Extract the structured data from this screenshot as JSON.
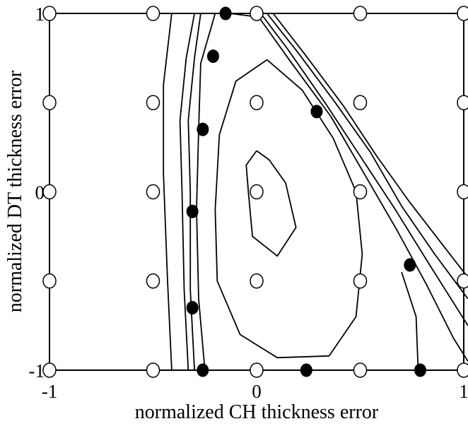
{
  "chart_data": {
    "type": "scatter",
    "title": "",
    "xlabel": "normalized CH thickness error",
    "ylabel": "normalized DT thickness error",
    "xlim": [
      -1,
      1
    ],
    "ylim": [
      -1,
      1
    ],
    "x_ticks": [
      -1,
      0,
      1
    ],
    "y_ticks": [
      -1,
      0,
      1
    ],
    "x_tick_labels": [
      "-1",
      "0",
      "1"
    ],
    "y_tick_labels": [
      "-1",
      "0",
      "1"
    ],
    "grid": false,
    "grid_points": {
      "x": [
        -1,
        -0.5,
        0,
        0.5,
        1
      ],
      "y": [
        -1,
        -0.5,
        0,
        0.5,
        1
      ]
    },
    "solution_points": [
      {
        "x": -0.15,
        "y": 1.0
      },
      {
        "x": -0.21,
        "y": 0.76
      },
      {
        "x": -0.26,
        "y": 0.35
      },
      {
        "x": -0.31,
        "y": -0.11
      },
      {
        "x": -0.31,
        "y": -0.65
      },
      {
        "x": -0.26,
        "y": -1.0
      },
      {
        "x": 0.29,
        "y": 0.45
      },
      {
        "x": 0.74,
        "y": -0.41
      },
      {
        "x": 0.79,
        "y": -1.0
      },
      {
        "x": 0.24,
        "y": -1.0
      }
    ],
    "contours": [
      [
        [
          0.0,
          0.23
        ],
        [
          -0.05,
          0.15
        ],
        [
          -0.04,
          0.0
        ],
        [
          -0.02,
          -0.25
        ],
        [
          0.1,
          -0.36
        ],
        [
          0.19,
          -0.2
        ],
        [
          0.14,
          0.05
        ],
        [
          0.06,
          0.18
        ],
        [
          0.0,
          0.23
        ]
      ],
      [
        [
          0.05,
          0.74
        ],
        [
          -0.1,
          0.62
        ],
        [
          -0.18,
          0.32
        ],
        [
          -0.2,
          -0.1
        ],
        [
          -0.19,
          -0.5
        ],
        [
          -0.08,
          -0.8
        ],
        [
          0.1,
          -0.93
        ],
        [
          0.35,
          -0.92
        ],
        [
          0.48,
          -0.7
        ],
        [
          0.51,
          -0.35
        ],
        [
          0.48,
          0.0
        ],
        [
          0.37,
          0.3
        ],
        [
          0.22,
          0.57
        ],
        [
          0.05,
          0.74
        ]
      ],
      [
        [
          -0.27,
          1.0
        ],
        [
          -0.3,
          0.75
        ],
        [
          -0.33,
          0.4
        ],
        [
          -0.32,
          0.0
        ],
        [
          -0.32,
          -0.55
        ],
        [
          -0.3,
          -1.0
        ]
      ],
      [
        [
          -0.3,
          1.0
        ],
        [
          -0.34,
          0.75
        ],
        [
          -0.37,
          0.4
        ],
        [
          -0.36,
          0.0
        ],
        [
          -0.35,
          -0.55
        ],
        [
          -0.33,
          -1.0
        ]
      ],
      [
        [
          -0.41,
          1.0
        ],
        [
          -0.45,
          0.6
        ],
        [
          -0.45,
          0.1
        ],
        [
          -0.43,
          -0.5
        ],
        [
          -0.41,
          -1.0
        ]
      ],
      [
        [
          -0.2,
          1.0
        ],
        [
          -0.27,
          0.72
        ],
        [
          -0.28,
          0.35
        ],
        [
          -0.29,
          -0.1
        ],
        [
          -0.28,
          -0.6
        ],
        [
          -0.25,
          -1.0
        ]
      ],
      [
        [
          -0.13,
          1.0
        ],
        [
          0.01,
          0.98
        ],
        [
          0.17,
          0.72
        ],
        [
          0.36,
          0.42
        ],
        [
          0.52,
          0.1
        ],
        [
          0.68,
          -0.22
        ],
        [
          0.82,
          -0.52
        ],
        [
          0.95,
          -0.82
        ],
        [
          1.02,
          -0.95
        ]
      ],
      [
        [
          0.02,
          1.0
        ],
        [
          0.15,
          0.8
        ],
        [
          0.33,
          0.5
        ],
        [
          0.5,
          0.2
        ],
        [
          0.67,
          -0.1
        ],
        [
          0.83,
          -0.4
        ],
        [
          1.02,
          -0.75
        ]
      ],
      [
        [
          0.05,
          1.0
        ],
        [
          0.2,
          0.78
        ],
        [
          0.38,
          0.5
        ],
        [
          0.55,
          0.22
        ],
        [
          0.7,
          -0.08
        ],
        [
          0.86,
          -0.35
        ],
        [
          1.02,
          -0.6
        ]
      ],
      [
        [
          0.08,
          1.0
        ],
        [
          0.24,
          0.76
        ],
        [
          0.42,
          0.48
        ],
        [
          0.58,
          0.2
        ],
        [
          0.74,
          -0.06
        ],
        [
          0.9,
          -0.3
        ],
        [
          1.02,
          -0.48
        ]
      ],
      [
        [
          0.7,
          -0.45
        ],
        [
          0.77,
          -0.7
        ],
        [
          0.78,
          -1.0
        ]
      ]
    ]
  }
}
